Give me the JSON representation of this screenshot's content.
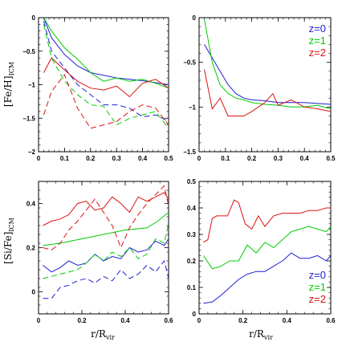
{
  "chart_data": [
    {
      "type": "line",
      "panel": "top-left",
      "ylabel": "[Fe/H]",
      "ylabel_sub": "ICM",
      "xlim": [
        0,
        0.5
      ],
      "ylim": [
        -2,
        0
      ],
      "xticks": [
        0,
        0.1,
        0.2,
        0.3,
        0.4,
        0.5
      ],
      "xtick_labels": [
        "0",
        "0.1",
        "0.2",
        "0.3",
        "0.4",
        "0.5"
      ],
      "yticks": [
        -2,
        -1.5,
        -1,
        -0.5,
        0
      ],
      "ytick_labels": [
        "−2",
        "−1.5",
        "−1",
        "−0.5",
        "0"
      ],
      "series": [
        {
          "color": "#1f1fd6",
          "dash": "solid",
          "x": [
            0.02,
            0.05,
            0.1,
            0.15,
            0.2,
            0.25,
            0.3,
            0.35,
            0.4,
            0.45,
            0.5
          ],
          "y": [
            0,
            -0.3,
            -0.55,
            -0.72,
            -0.82,
            -0.86,
            -0.9,
            -0.92,
            -0.94,
            -0.97,
            -1.0
          ]
        },
        {
          "color": "#00cc00",
          "dash": "solid",
          "x": [
            0.02,
            0.05,
            0.1,
            0.15,
            0.2,
            0.25,
            0.3,
            0.35,
            0.4,
            0.45,
            0.5
          ],
          "y": [
            0,
            -0.2,
            -0.45,
            -0.62,
            -0.82,
            -0.95,
            -0.9,
            -0.95,
            -0.92,
            -0.98,
            -1.05
          ]
        },
        {
          "color": "#dd1111",
          "dash": "solid",
          "x": [
            0.02,
            0.05,
            0.1,
            0.15,
            0.2,
            0.25,
            0.3,
            0.35,
            0.4,
            0.45,
            0.5
          ],
          "y": [
            -0.82,
            -0.6,
            -0.78,
            -0.95,
            -1.05,
            -1.08,
            -1.02,
            -1.18,
            -0.98,
            -0.92,
            -1.05
          ]
        },
        {
          "color": "#1f1fd6",
          "dash": "dashed",
          "x": [
            0.02,
            0.05,
            0.1,
            0.15,
            0.2,
            0.25,
            0.3,
            0.35,
            0.4,
            0.45,
            0.5
          ],
          "y": [
            -0.05,
            -0.5,
            -0.75,
            -1.0,
            -1.15,
            -1.3,
            -1.3,
            -1.35,
            -1.48,
            -1.45,
            -1.55
          ]
        },
        {
          "color": "#00cc00",
          "dash": "dashed",
          "x": [
            0.02,
            0.05,
            0.1,
            0.15,
            0.2,
            0.25,
            0.3,
            0.35,
            0.4,
            0.45,
            0.5
          ],
          "y": [
            -0.1,
            -0.6,
            -0.95,
            -1.15,
            -1.3,
            -1.32,
            -1.6,
            -1.5,
            -1.45,
            -1.4,
            -1.65
          ]
        },
        {
          "color": "#dd1111",
          "dash": "dashed",
          "x": [
            0.02,
            0.05,
            0.1,
            0.15,
            0.2,
            0.25,
            0.3,
            0.35,
            0.4,
            0.45,
            0.5
          ],
          "y": [
            -1.45,
            -1.1,
            -0.85,
            -1.35,
            -1.65,
            -1.6,
            -1.55,
            -1.4,
            -1.3,
            -1.35,
            -1.6
          ]
        }
      ]
    },
    {
      "type": "line",
      "panel": "top-right",
      "xlim": [
        0,
        0.5
      ],
      "ylim": [
        -1.5,
        0
      ],
      "xticks": [
        0,
        0.1,
        0.2,
        0.3,
        0.4,
        0.5
      ],
      "xtick_labels": [
        "0",
        "0.1",
        "0.2",
        "0.3",
        "0.4",
        "0.5"
      ],
      "yticks": [
        -1.5,
        -1,
        -0.5,
        0
      ],
      "ytick_labels": [
        "−1.5",
        "−1",
        "−0.5",
        "0"
      ],
      "legend": {
        "placement": "top-right",
        "entries": [
          "z=0",
          "z=1",
          "z=2"
        ],
        "colors": [
          "#1f1fd6",
          "#00cc00",
          "#dd1111"
        ]
      },
      "series": [
        {
          "name": "z=0",
          "color": "#1f1fd6",
          "dash": "solid",
          "x": [
            0.02,
            0.05,
            0.08,
            0.11,
            0.14,
            0.17,
            0.2,
            0.25,
            0.3,
            0.35,
            0.4,
            0.45,
            0.5
          ],
          "y": [
            -0.3,
            -0.45,
            -0.6,
            -0.75,
            -0.85,
            -0.9,
            -0.92,
            -0.93,
            -0.95,
            -0.95,
            -0.95,
            -0.96,
            -0.97
          ]
        },
        {
          "name": "z=1",
          "color": "#00cc00",
          "dash": "solid",
          "x": [
            0.02,
            0.05,
            0.08,
            0.11,
            0.14,
            0.17,
            0.2,
            0.25,
            0.3,
            0.35,
            0.4,
            0.45,
            0.5
          ],
          "y": [
            -0.02,
            -0.5,
            -0.75,
            -0.85,
            -0.9,
            -0.92,
            -0.95,
            -0.97,
            -0.98,
            -1.0,
            -1.0,
            -0.98,
            -1.02
          ]
        },
        {
          "name": "z=2",
          "color": "#dd1111",
          "dash": "solid",
          "x": [
            0.02,
            0.05,
            0.08,
            0.11,
            0.14,
            0.17,
            0.2,
            0.25,
            0.28,
            0.3,
            0.35,
            0.4,
            0.45,
            0.5
          ],
          "y": [
            -0.58,
            -1.02,
            -0.9,
            -1.1,
            -1.1,
            -1.1,
            -1.05,
            -0.95,
            -0.85,
            -0.98,
            -0.92,
            -1.0,
            -1.02,
            -1.05
          ]
        }
      ]
    },
    {
      "type": "line",
      "panel": "bottom-left",
      "ylabel": "[Si/Fe]",
      "ylabel_sub": "ICM",
      "xlabel": "r/R",
      "xlabel_sub": "vir",
      "xlim": [
        0,
        0.6
      ],
      "ylim": [
        -0.1,
        0.5
      ],
      "xticks": [
        0,
        0.2,
        0.4,
        0.6
      ],
      "xtick_labels": [
        "0",
        "0.2",
        "0.4",
        "0.6"
      ],
      "yticks": [
        0,
        0.2,
        0.4
      ],
      "ytick_labels": [
        "0",
        "0.2",
        "0.4"
      ],
      "series": [
        {
          "color": "#1f1fd6",
          "dash": "solid",
          "x": [
            0.02,
            0.06,
            0.1,
            0.14,
            0.18,
            0.22,
            0.26,
            0.3,
            0.34,
            0.38,
            0.42,
            0.46,
            0.5,
            0.54,
            0.58,
            0.6
          ],
          "y": [
            0.12,
            0.09,
            0.11,
            0.14,
            0.12,
            0.13,
            0.17,
            0.14,
            0.16,
            0.15,
            0.2,
            0.18,
            0.19,
            0.23,
            0.21,
            0.24
          ]
        },
        {
          "color": "#00cc00",
          "dash": "solid",
          "x": [
            0.02,
            0.1,
            0.2,
            0.3,
            0.4,
            0.5,
            0.55,
            0.6
          ],
          "y": [
            0.21,
            0.22,
            0.24,
            0.26,
            0.28,
            0.29,
            0.32,
            0.36
          ]
        },
        {
          "color": "#dd1111",
          "dash": "solid",
          "x": [
            0.02,
            0.06,
            0.1,
            0.14,
            0.18,
            0.22,
            0.26,
            0.3,
            0.34,
            0.38,
            0.42,
            0.46,
            0.5,
            0.54,
            0.58,
            0.6
          ],
          "y": [
            0.3,
            0.32,
            0.33,
            0.35,
            0.4,
            0.41,
            0.37,
            0.38,
            0.43,
            0.4,
            0.36,
            0.43,
            0.41,
            0.43,
            0.45,
            0.42
          ]
        },
        {
          "color": "#1f1fd6",
          "dash": "dashed",
          "x": [
            0.02,
            0.06,
            0.1,
            0.14,
            0.18,
            0.22,
            0.26,
            0.3,
            0.34,
            0.38,
            0.42,
            0.46,
            0.5,
            0.54,
            0.58,
            0.6
          ],
          "y": [
            -0.03,
            -0.03,
            0.02,
            0.03,
            0.05,
            0.06,
            0.04,
            0.07,
            0.05,
            0.1,
            0.06,
            0.08,
            0.12,
            0.09,
            0.14,
            0.06
          ]
        },
        {
          "color": "#00cc00",
          "dash": "dashed",
          "x": [
            0.02,
            0.1,
            0.18,
            0.22,
            0.26,
            0.3,
            0.34,
            0.38,
            0.42,
            0.46,
            0.5,
            0.54,
            0.58,
            0.6
          ],
          "y": [
            0.06,
            0.08,
            0.1,
            0.13,
            0.17,
            0.14,
            0.18,
            0.16,
            0.2,
            0.15,
            0.17,
            0.24,
            0.22,
            0.31
          ]
        },
        {
          "color": "#dd1111",
          "dash": "dashed",
          "x": [
            0.02,
            0.06,
            0.1,
            0.14,
            0.18,
            0.22,
            0.26,
            0.3,
            0.34,
            0.38,
            0.42,
            0.46,
            0.5,
            0.54,
            0.58,
            0.6
          ],
          "y": [
            0.2,
            0.19,
            0.22,
            0.28,
            0.32,
            0.37,
            0.42,
            0.36,
            0.3,
            0.2,
            0.29,
            0.35,
            0.4,
            0.44,
            0.48,
            0.39
          ]
        }
      ]
    },
    {
      "type": "line",
      "panel": "bottom-right",
      "xlabel": "r/R",
      "xlabel_sub": "vir",
      "xlim": [
        0,
        0.6
      ],
      "ylim": [
        0,
        0.5
      ],
      "xticks": [
        0,
        0.2,
        0.4,
        0.6
      ],
      "xtick_labels": [
        "0",
        "0.2",
        "0.4",
        "0.6"
      ],
      "yticks": [
        0,
        0.1,
        0.2,
        0.3,
        0.4,
        0.5
      ],
      "ytick_labels": [
        "0",
        "0.1",
        "0.2",
        "0.3",
        "0.4",
        "0.5"
      ],
      "legend": {
        "placement": "bottom-right",
        "entries": [
          "z=0",
          "z=1",
          "z=2"
        ],
        "colors": [
          "#1f1fd6",
          "#00cc00",
          "#dd1111"
        ]
      },
      "series": [
        {
          "name": "z=0",
          "color": "#1f1fd6",
          "dash": "solid",
          "x": [
            0.02,
            0.06,
            0.1,
            0.14,
            0.18,
            0.22,
            0.26,
            0.3,
            0.34,
            0.38,
            0.42,
            0.46,
            0.5,
            0.54,
            0.58,
            0.6
          ],
          "y": [
            0.04,
            0.045,
            0.07,
            0.1,
            0.13,
            0.15,
            0.16,
            0.16,
            0.18,
            0.2,
            0.23,
            0.21,
            0.21,
            0.22,
            0.2,
            0.22
          ]
        },
        {
          "name": "z=1",
          "color": "#00cc00",
          "dash": "solid",
          "x": [
            0.02,
            0.06,
            0.1,
            0.14,
            0.18,
            0.22,
            0.26,
            0.3,
            0.34,
            0.38,
            0.42,
            0.46,
            0.5,
            0.54,
            0.58,
            0.6
          ],
          "y": [
            0.22,
            0.17,
            0.18,
            0.2,
            0.2,
            0.26,
            0.23,
            0.27,
            0.25,
            0.28,
            0.31,
            0.32,
            0.33,
            0.32,
            0.31,
            0.33
          ]
        },
        {
          "name": "z=2",
          "color": "#dd1111",
          "dash": "solid",
          "x": [
            0.02,
            0.04,
            0.06,
            0.08,
            0.1,
            0.13,
            0.16,
            0.18,
            0.21,
            0.24,
            0.27,
            0.3,
            0.34,
            0.38,
            0.42,
            0.46,
            0.5,
            0.54,
            0.58,
            0.6
          ],
          "y": [
            0.27,
            0.28,
            0.36,
            0.37,
            0.37,
            0.37,
            0.43,
            0.42,
            0.34,
            0.32,
            0.37,
            0.33,
            0.37,
            0.38,
            0.38,
            0.38,
            0.39,
            0.39,
            0.4,
            0.4
          ]
        }
      ]
    }
  ]
}
